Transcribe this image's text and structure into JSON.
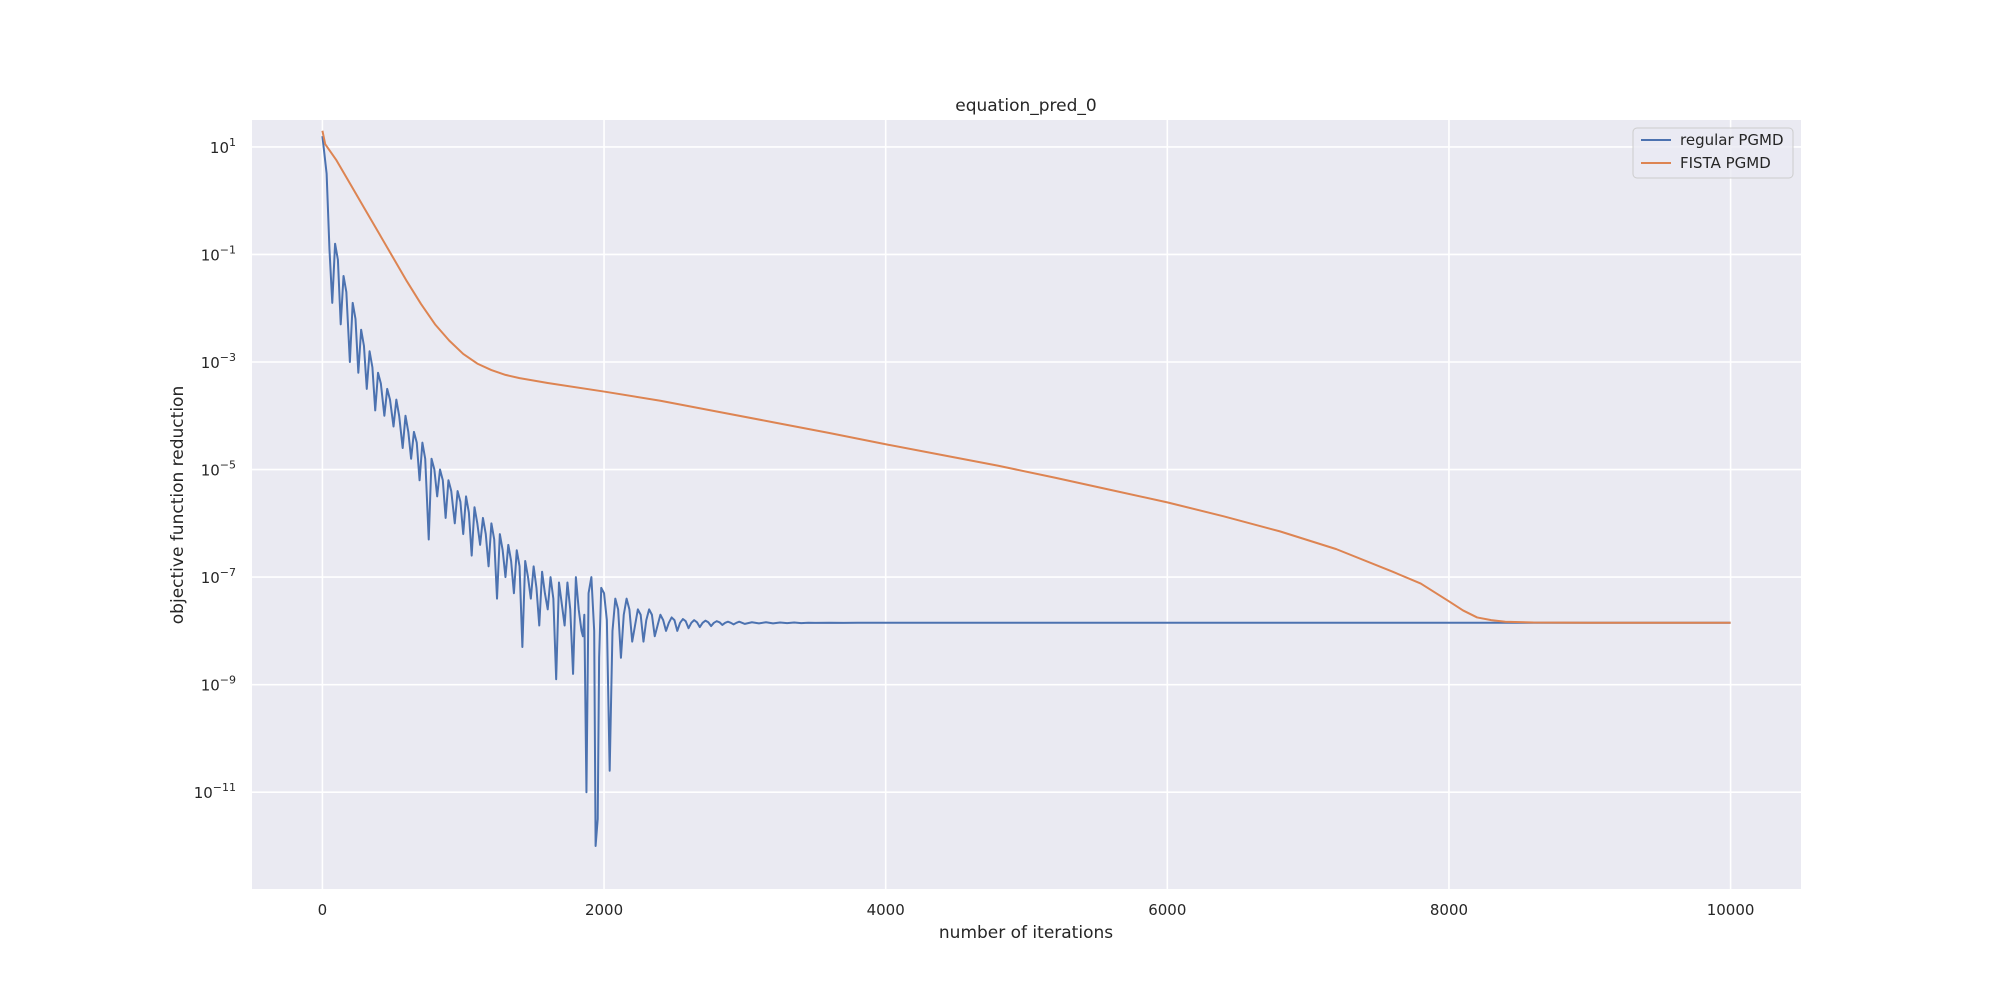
{
  "chart_data": {
    "type": "line",
    "title": "equation_pred_0",
    "xlabel": "number of iterations",
    "ylabel": "objective function reduction",
    "xlim": [
      -500,
      10500
    ],
    "ylim_log10": [
      -12.8,
      1.5
    ],
    "y_scale": "log",
    "grid": true,
    "legend_position": "top-right",
    "x_ticks": [
      {
        "value": 0,
        "label": "0"
      },
      {
        "value": 2000,
        "label": "2000"
      },
      {
        "value": 4000,
        "label": "4000"
      },
      {
        "value": 6000,
        "label": "6000"
      },
      {
        "value": 8000,
        "label": "8000"
      },
      {
        "value": 10000,
        "label": "10000"
      }
    ],
    "y_ticks": [
      {
        "exp": 1,
        "base": "10",
        "sup": "1"
      },
      {
        "exp": -1,
        "base": "10",
        "sup": "−1"
      },
      {
        "exp": -3,
        "base": "10",
        "sup": "−3"
      },
      {
        "exp": -5,
        "base": "10",
        "sup": "−5"
      },
      {
        "exp": -7,
        "base": "10",
        "sup": "−7"
      },
      {
        "exp": -9,
        "base": "10",
        "sup": "−9"
      },
      {
        "exp": -11,
        "base": "10",
        "sup": "−11"
      }
    ],
    "series": [
      {
        "name": "regular PGMD",
        "color": "#4c72b0",
        "points": [
          [
            0,
            1.2
          ],
          [
            30,
            0.5
          ],
          [
            50,
            -0.9
          ],
          [
            70,
            -1.9
          ],
          [
            90,
            -0.8
          ],
          [
            110,
            -1.1
          ],
          [
            130,
            -2.3
          ],
          [
            150,
            -1.4
          ],
          [
            170,
            -1.7
          ],
          [
            195,
            -3.0
          ],
          [
            215,
            -1.9
          ],
          [
            235,
            -2.2
          ],
          [
            255,
            -3.2
          ],
          [
            275,
            -2.4
          ],
          [
            295,
            -2.7
          ],
          [
            315,
            -3.5
          ],
          [
            335,
            -2.8
          ],
          [
            355,
            -3.1
          ],
          [
            375,
            -3.9
          ],
          [
            395,
            -3.2
          ],
          [
            415,
            -3.4
          ],
          [
            440,
            -4.0
          ],
          [
            460,
            -3.5
          ],
          [
            480,
            -3.7
          ],
          [
            505,
            -4.2
          ],
          [
            525,
            -3.7
          ],
          [
            545,
            -4.0
          ],
          [
            570,
            -4.6
          ],
          [
            590,
            -4.0
          ],
          [
            610,
            -4.3
          ],
          [
            630,
            -4.8
          ],
          [
            650,
            -4.3
          ],
          [
            670,
            -4.5
          ],
          [
            690,
            -5.2
          ],
          [
            710,
            -4.5
          ],
          [
            730,
            -4.8
          ],
          [
            755,
            -6.3
          ],
          [
            775,
            -4.8
          ],
          [
            795,
            -5.0
          ],
          [
            815,
            -5.5
          ],
          [
            835,
            -5.0
          ],
          [
            855,
            -5.2
          ],
          [
            875,
            -5.9
          ],
          [
            895,
            -5.2
          ],
          [
            915,
            -5.4
          ],
          [
            940,
            -6.0
          ],
          [
            960,
            -5.4
          ],
          [
            980,
            -5.6
          ],
          [
            1000,
            -6.2
          ],
          [
            1020,
            -5.5
          ],
          [
            1040,
            -5.8
          ],
          [
            1060,
            -6.6
          ],
          [
            1080,
            -5.7
          ],
          [
            1100,
            -6.0
          ],
          [
            1120,
            -6.4
          ],
          [
            1140,
            -5.9
          ],
          [
            1160,
            -6.2
          ],
          [
            1180,
            -6.8
          ],
          [
            1200,
            -6.0
          ],
          [
            1220,
            -6.3
          ],
          [
            1240,
            -7.4
          ],
          [
            1260,
            -6.2
          ],
          [
            1280,
            -6.5
          ],
          [
            1300,
            -7.0
          ],
          [
            1320,
            -6.4
          ],
          [
            1340,
            -6.7
          ],
          [
            1360,
            -7.3
          ],
          [
            1380,
            -6.5
          ],
          [
            1400,
            -6.8
          ],
          [
            1420,
            -8.3
          ],
          [
            1440,
            -6.7
          ],
          [
            1460,
            -7.0
          ],
          [
            1480,
            -7.4
          ],
          [
            1500,
            -6.8
          ],
          [
            1520,
            -7.2
          ],
          [
            1540,
            -7.9
          ],
          [
            1560,
            -6.9
          ],
          [
            1580,
            -7.3
          ],
          [
            1600,
            -7.6
          ],
          [
            1620,
            -7.0
          ],
          [
            1640,
            -7.4
          ],
          [
            1660,
            -8.9
          ],
          [
            1680,
            -7.1
          ],
          [
            1700,
            -7.5
          ],
          [
            1720,
            -7.9
          ],
          [
            1740,
            -7.1
          ],
          [
            1760,
            -7.6
          ],
          [
            1780,
            -8.8
          ],
          [
            1800,
            -7.0
          ],
          [
            1820,
            -7.6
          ],
          [
            1840,
            -8.0
          ],
          [
            1850,
            -8.1
          ],
          [
            1860,
            -7.7
          ],
          [
            1875,
            -11.0
          ],
          [
            1890,
            -7.3
          ],
          [
            1910,
            -7.0
          ],
          [
            1930,
            -8.0
          ],
          [
            1940,
            -12.0
          ],
          [
            1955,
            -11.5
          ],
          [
            1965,
            -8.5
          ],
          [
            1980,
            -7.2
          ],
          [
            2000,
            -7.3
          ],
          [
            2020,
            -7.8
          ],
          [
            2040,
            -10.6
          ],
          [
            2060,
            -8.0
          ],
          [
            2080,
            -7.4
          ],
          [
            2100,
            -7.6
          ],
          [
            2120,
            -8.5
          ],
          [
            2140,
            -7.7
          ],
          [
            2160,
            -7.4
          ],
          [
            2180,
            -7.6
          ],
          [
            2200,
            -8.2
          ],
          [
            2220,
            -7.9
          ],
          [
            2240,
            -7.6
          ],
          [
            2260,
            -7.7
          ],
          [
            2280,
            -8.2
          ],
          [
            2300,
            -7.8
          ],
          [
            2320,
            -7.6
          ],
          [
            2340,
            -7.7
          ],
          [
            2360,
            -8.1
          ],
          [
            2380,
            -7.9
          ],
          [
            2400,
            -7.7
          ],
          [
            2420,
            -7.8
          ],
          [
            2440,
            -8.0
          ],
          [
            2460,
            -7.85
          ],
          [
            2480,
            -7.75
          ],
          [
            2500,
            -7.8
          ],
          [
            2520,
            -8.0
          ],
          [
            2540,
            -7.85
          ],
          [
            2560,
            -7.78
          ],
          [
            2580,
            -7.82
          ],
          [
            2600,
            -7.95
          ],
          [
            2620,
            -7.85
          ],
          [
            2640,
            -7.8
          ],
          [
            2660,
            -7.84
          ],
          [
            2680,
            -7.93
          ],
          [
            2700,
            -7.85
          ],
          [
            2720,
            -7.81
          ],
          [
            2740,
            -7.84
          ],
          [
            2760,
            -7.91
          ],
          [
            2780,
            -7.85
          ],
          [
            2800,
            -7.82
          ],
          [
            2820,
            -7.84
          ],
          [
            2840,
            -7.89
          ],
          [
            2860,
            -7.85
          ],
          [
            2880,
            -7.83
          ],
          [
            2900,
            -7.85
          ],
          [
            2920,
            -7.88
          ],
          [
            2940,
            -7.85
          ],
          [
            2960,
            -7.83
          ],
          [
            2980,
            -7.85
          ],
          [
            3000,
            -7.87
          ],
          [
            3050,
            -7.84
          ],
          [
            3100,
            -7.86
          ],
          [
            3150,
            -7.84
          ],
          [
            3200,
            -7.86
          ],
          [
            3250,
            -7.845
          ],
          [
            3300,
            -7.855
          ],
          [
            3350,
            -7.845
          ],
          [
            3400,
            -7.855
          ],
          [
            3450,
            -7.848
          ],
          [
            3500,
            -7.852
          ],
          [
            3600,
            -7.848
          ],
          [
            3700,
            -7.852
          ],
          [
            3800,
            -7.85
          ],
          [
            4000,
            -7.85
          ],
          [
            5000,
            -7.85
          ],
          [
            6000,
            -7.85
          ],
          [
            7000,
            -7.85
          ],
          [
            8000,
            -7.85
          ],
          [
            9000,
            -7.85
          ],
          [
            10000,
            -7.85
          ]
        ]
      },
      {
        "name": "FISTA PGMD",
        "color": "#dd8452",
        "points": [
          [
            0,
            1.3
          ],
          [
            20,
            1.05
          ],
          [
            100,
            0.75
          ],
          [
            200,
            0.3
          ],
          [
            300,
            -0.15
          ],
          [
            400,
            -0.6
          ],
          [
            500,
            -1.05
          ],
          [
            600,
            -1.5
          ],
          [
            700,
            -1.92
          ],
          [
            800,
            -2.3
          ],
          [
            900,
            -2.6
          ],
          [
            1000,
            -2.85
          ],
          [
            1100,
            -3.03
          ],
          [
            1200,
            -3.15
          ],
          [
            1300,
            -3.24
          ],
          [
            1400,
            -3.3
          ],
          [
            1600,
            -3.39
          ],
          [
            2000,
            -3.55
          ],
          [
            2400,
            -3.72
          ],
          [
            2800,
            -3.92
          ],
          [
            3200,
            -4.12
          ],
          [
            3600,
            -4.32
          ],
          [
            4000,
            -4.53
          ],
          [
            4400,
            -4.73
          ],
          [
            4800,
            -4.93
          ],
          [
            5200,
            -5.15
          ],
          [
            5600,
            -5.38
          ],
          [
            6000,
            -5.61
          ],
          [
            6400,
            -5.87
          ],
          [
            6800,
            -6.15
          ],
          [
            7200,
            -6.48
          ],
          [
            7600,
            -6.9
          ],
          [
            7800,
            -7.12
          ],
          [
            8000,
            -7.45
          ],
          [
            8100,
            -7.62
          ],
          [
            8200,
            -7.75
          ],
          [
            8300,
            -7.8
          ],
          [
            8400,
            -7.83
          ],
          [
            8600,
            -7.845
          ],
          [
            9000,
            -7.85
          ],
          [
            10000,
            -7.85
          ]
        ]
      }
    ]
  }
}
